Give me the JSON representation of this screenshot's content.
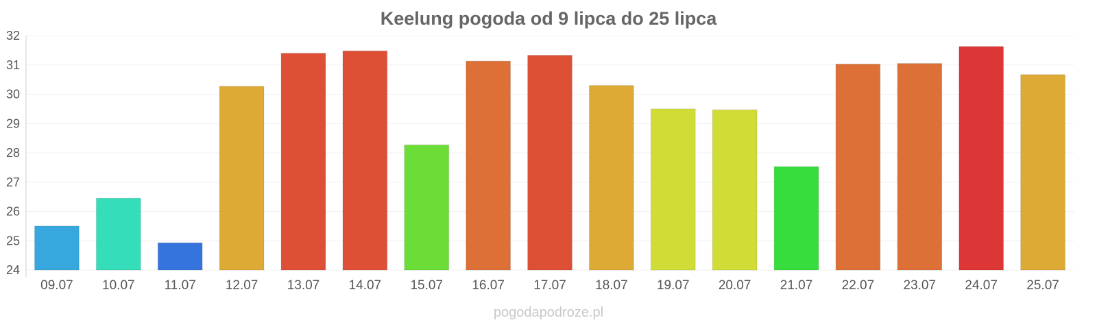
{
  "chart_data": {
    "type": "bar",
    "title": "Keelung pogoda od 9 lipca do 25 lipca",
    "categories": [
      "09.07",
      "10.07",
      "11.07",
      "12.07",
      "13.07",
      "14.07",
      "15.07",
      "16.07",
      "17.07",
      "18.07",
      "19.07",
      "20.07",
      "21.07",
      "22.07",
      "23.07",
      "24.07",
      "25.07"
    ],
    "values": [
      25.5,
      26.45,
      24.93,
      30.27,
      31.4,
      31.48,
      28.27,
      31.13,
      31.33,
      30.3,
      29.5,
      29.47,
      27.53,
      31.03,
      31.05,
      31.63,
      30.67
    ],
    "colors": [
      "#36a8dd",
      "#36ddbb",
      "#3674dd",
      "#ddaa36",
      "#dd5036",
      "#dd5036",
      "#6bdd36",
      "#dd7036",
      "#dd5036",
      "#ddaa36",
      "#d0dd36",
      "#d0dd36",
      "#36dd3c",
      "#dd7036",
      "#dd7036",
      "#dd3636",
      "#ddaa36"
    ],
    "ylim": [
      24,
      32
    ],
    "yticks": [
      24,
      25,
      26,
      27,
      28,
      29,
      30,
      31,
      32
    ],
    "grid": true,
    "xlabel": "",
    "ylabel": ""
  },
  "source_text": "pogodapodroze.pl"
}
